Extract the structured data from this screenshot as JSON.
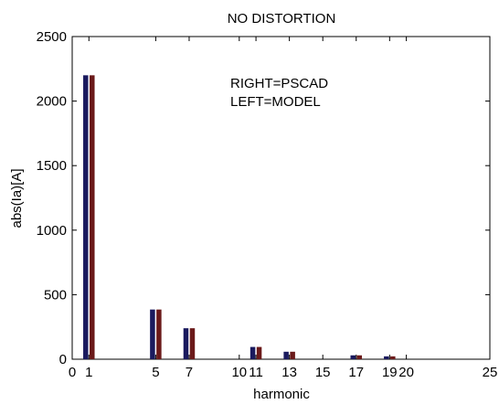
{
  "chart_data": {
    "type": "bar",
    "title": "NO DISTORTION",
    "xlabel": "harmonic",
    "ylabel": "abs(Ia)[A]",
    "xlim": [
      0,
      25
    ],
    "ylim": [
      0,
      2500
    ],
    "xticks": [
      0,
      1,
      5,
      7,
      10,
      11,
      13,
      15,
      17,
      19,
      20,
      25
    ],
    "yticks": [
      0,
      500,
      1000,
      1500,
      2000,
      2500
    ],
    "annotations": [
      "RIGHT=PSCAD",
      "LEFT=MODEL"
    ],
    "grid": false,
    "colors": {
      "model": "#1a1a5e",
      "pscad": "#6b1a1a"
    },
    "bars": [
      {
        "harmonic": 1,
        "model": 2200,
        "pscad": 2200
      },
      {
        "harmonic": 5,
        "model": 385,
        "pscad": 385
      },
      {
        "harmonic": 7,
        "model": 240,
        "pscad": 240
      },
      {
        "harmonic": 11,
        "model": 95,
        "pscad": 95
      },
      {
        "harmonic": 13,
        "model": 58,
        "pscad": 58
      },
      {
        "harmonic": 17,
        "model": 30,
        "pscad": 30
      },
      {
        "harmonic": 19,
        "model": 22,
        "pscad": 22
      }
    ]
  }
}
